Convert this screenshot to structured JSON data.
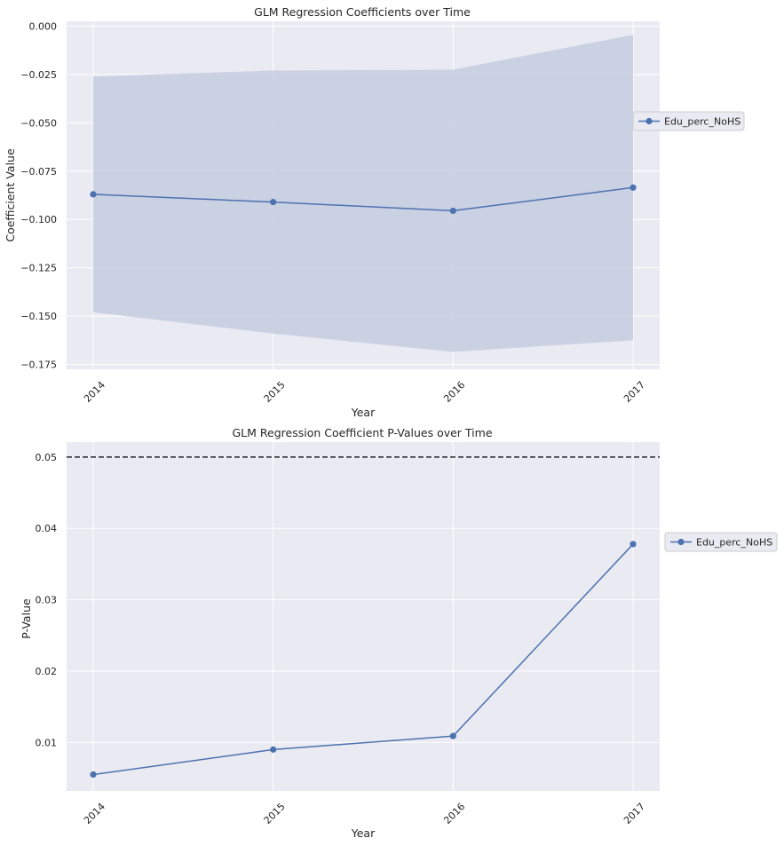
{
  "chart_data": [
    {
      "type": "line",
      "title": "GLM Regression Coefficients over Time",
      "xlabel": "Year",
      "ylabel": "Coefficient Value",
      "categories": [
        "2014",
        "2015",
        "2016",
        "2017"
      ],
      "series": [
        {
          "name": "Edu_perc_NoHS",
          "values": [
            -0.087,
            -0.091,
            -0.0955,
            -0.0835
          ],
          "ci_upper": [
            -0.026,
            -0.023,
            -0.0225,
            -0.0045
          ],
          "ci_lower": [
            -0.148,
            -0.159,
            -0.1685,
            -0.1625
          ],
          "color": "#4c72b0"
        }
      ],
      "ylim": [
        -0.1775,
        0.0025
      ],
      "yticks": [
        0.0,
        -0.025,
        -0.05,
        -0.075,
        -0.1,
        -0.125,
        -0.15,
        -0.175
      ],
      "ytick_labels": [
        "0.000",
        "−0.025",
        "−0.050",
        "−0.075",
        "−0.100",
        "−0.125",
        "−0.150",
        "−0.175"
      ],
      "grid": true,
      "legend_placement": "center-right-outside"
    },
    {
      "type": "line",
      "title": "GLM Regression Coefficient P-Values over Time",
      "xlabel": "Year",
      "ylabel": "P-Value",
      "categories": [
        "2014",
        "2015",
        "2016",
        "2017"
      ],
      "series": [
        {
          "name": "Edu_perc_NoHS",
          "values": [
            0.0055,
            0.009,
            0.0109,
            0.0378
          ],
          "color": "#4c72b0"
        }
      ],
      "reference_line": {
        "y": 0.05,
        "style": "dashed",
        "color": "#222233"
      },
      "ylim": [
        0.0032,
        0.0521
      ],
      "yticks": [
        0.01,
        0.02,
        0.03,
        0.04,
        0.05
      ],
      "ytick_labels": [
        "0.01",
        "0.02",
        "0.03",
        "0.04",
        "0.05"
      ],
      "grid": true,
      "legend_placement": "center-right-outside"
    }
  ],
  "colors": {
    "plot_background": "#eaeaf2",
    "grid": "#ffffff",
    "line": "#4c72b0",
    "band": "#c3cce1"
  }
}
